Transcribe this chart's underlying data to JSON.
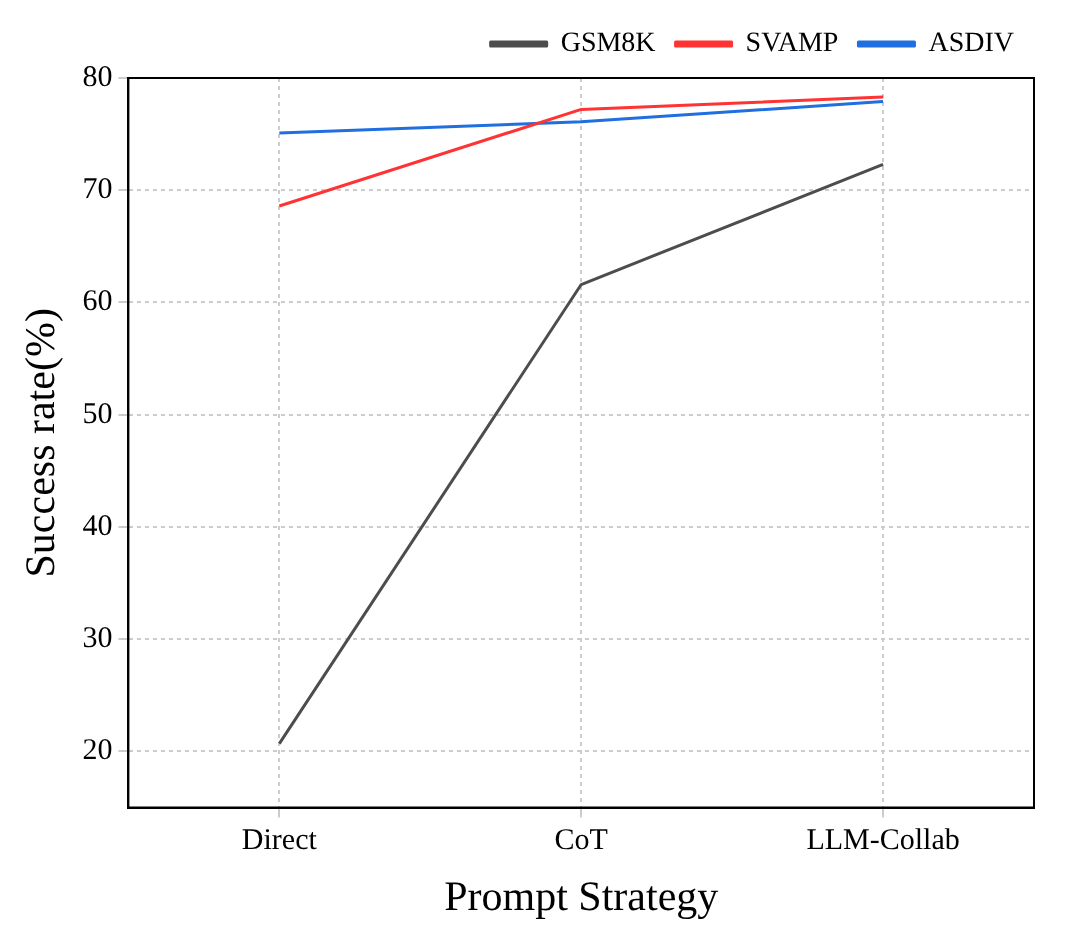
{
  "chart_data": {
    "type": "line",
    "xlabel": "Prompt Strategy",
    "ylabel": "Success rate(%)",
    "categories": [
      "Direct",
      "CoT",
      "LLM-Collab"
    ],
    "series": [
      {
        "name": "GSM8K",
        "color": "#4d4d4d",
        "values": [
          20.7,
          61.6,
          72.3
        ]
      },
      {
        "name": "SVAMP",
        "color": "#ff3333",
        "values": [
          68.6,
          77.2,
          78.3
        ]
      },
      {
        "name": "ASDIV",
        "color": "#1f6fe0",
        "values": [
          75.1,
          76.1,
          77.9
        ]
      }
    ],
    "ylim": [
      15,
      80
    ],
    "yticks": [
      20,
      30,
      40,
      50,
      60,
      70,
      80
    ],
    "grid": true,
    "legend": "top right",
    "marker": "none",
    "line_style": "solid"
  }
}
